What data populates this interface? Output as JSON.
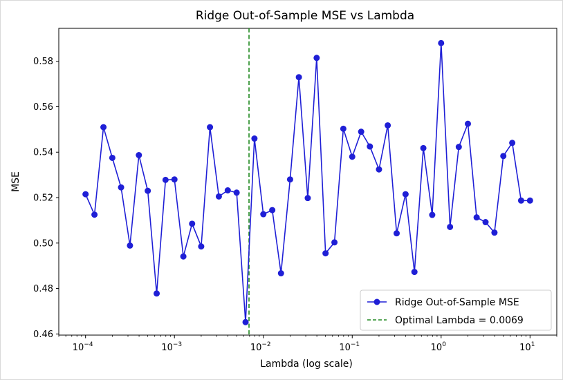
{
  "chart_data": {
    "type": "line",
    "title": "Ridge Out-of-Sample MSE vs Lambda",
    "xlabel": "Lambda (log scale)",
    "ylabel": "MSE",
    "xscale": "log",
    "xlim": [
      5e-05,
      20
    ],
    "ylim": [
      0.4595,
      0.5945
    ],
    "grid": false,
    "legend_position": "lower-right",
    "x_ticks": [
      {
        "value": 0.0001,
        "base": "10",
        "exp": "−4"
      },
      {
        "value": 0.001,
        "base": "10",
        "exp": "−3"
      },
      {
        "value": 0.01,
        "base": "10",
        "exp": "−2"
      },
      {
        "value": 0.1,
        "base": "10",
        "exp": "−1"
      },
      {
        "value": 1,
        "base": "10",
        "exp": "0"
      },
      {
        "value": 10,
        "base": "10",
        "exp": "1"
      }
    ],
    "y_ticks": [
      "0.46",
      "0.48",
      "0.50",
      "0.52",
      "0.54",
      "0.56",
      "0.58"
    ],
    "series": [
      {
        "name": "Ridge Out-of-Sample MSE",
        "color": "#1f1fd6",
        "marker": "circle",
        "x": [
          0.0001,
          0.000126,
          0.000159,
          0.0002,
          0.000251,
          0.000316,
          0.000398,
          0.000501,
          0.000631,
          0.000794,
          0.001,
          0.00126,
          0.00158,
          0.002,
          0.00251,
          0.00316,
          0.00398,
          0.00501,
          0.00631,
          0.00794,
          0.01,
          0.0126,
          0.0158,
          0.02,
          0.0251,
          0.0316,
          0.0398,
          0.0501,
          0.0631,
          0.0794,
          0.1,
          0.126,
          0.158,
          0.2,
          0.251,
          0.316,
          0.398,
          0.501,
          0.631,
          0.794,
          1,
          1.26,
          1.58,
          2,
          2.51,
          3.16,
          3.98,
          5.01,
          6.31,
          7.94,
          10
        ],
        "values": [
          0.5215,
          0.5125,
          0.551,
          0.5375,
          0.5245,
          0.4989,
          0.5387,
          0.523,
          0.4778,
          0.5278,
          0.528,
          0.4941,
          0.5085,
          0.4985,
          0.551,
          0.5205,
          0.5232,
          0.5222,
          0.4652,
          0.546,
          0.5127,
          0.5145,
          0.4867,
          0.528,
          0.573,
          0.5198,
          0.5815,
          0.4955,
          0.5003,
          0.5503,
          0.538,
          0.549,
          0.5425,
          0.5324,
          0.5518,
          0.5043,
          0.5215,
          0.4873,
          0.5418,
          0.5124,
          0.588,
          0.5071,
          0.5423,
          0.5525,
          0.5113,
          0.5092,
          0.5046,
          0.5383,
          0.5441,
          0.5187,
          0.5187
        ]
      },
      {
        "name": "Optimal Lambda = 0.0069",
        "color": "#218a21",
        "style": "dashed",
        "vline_x": 0.0069
      }
    ]
  }
}
